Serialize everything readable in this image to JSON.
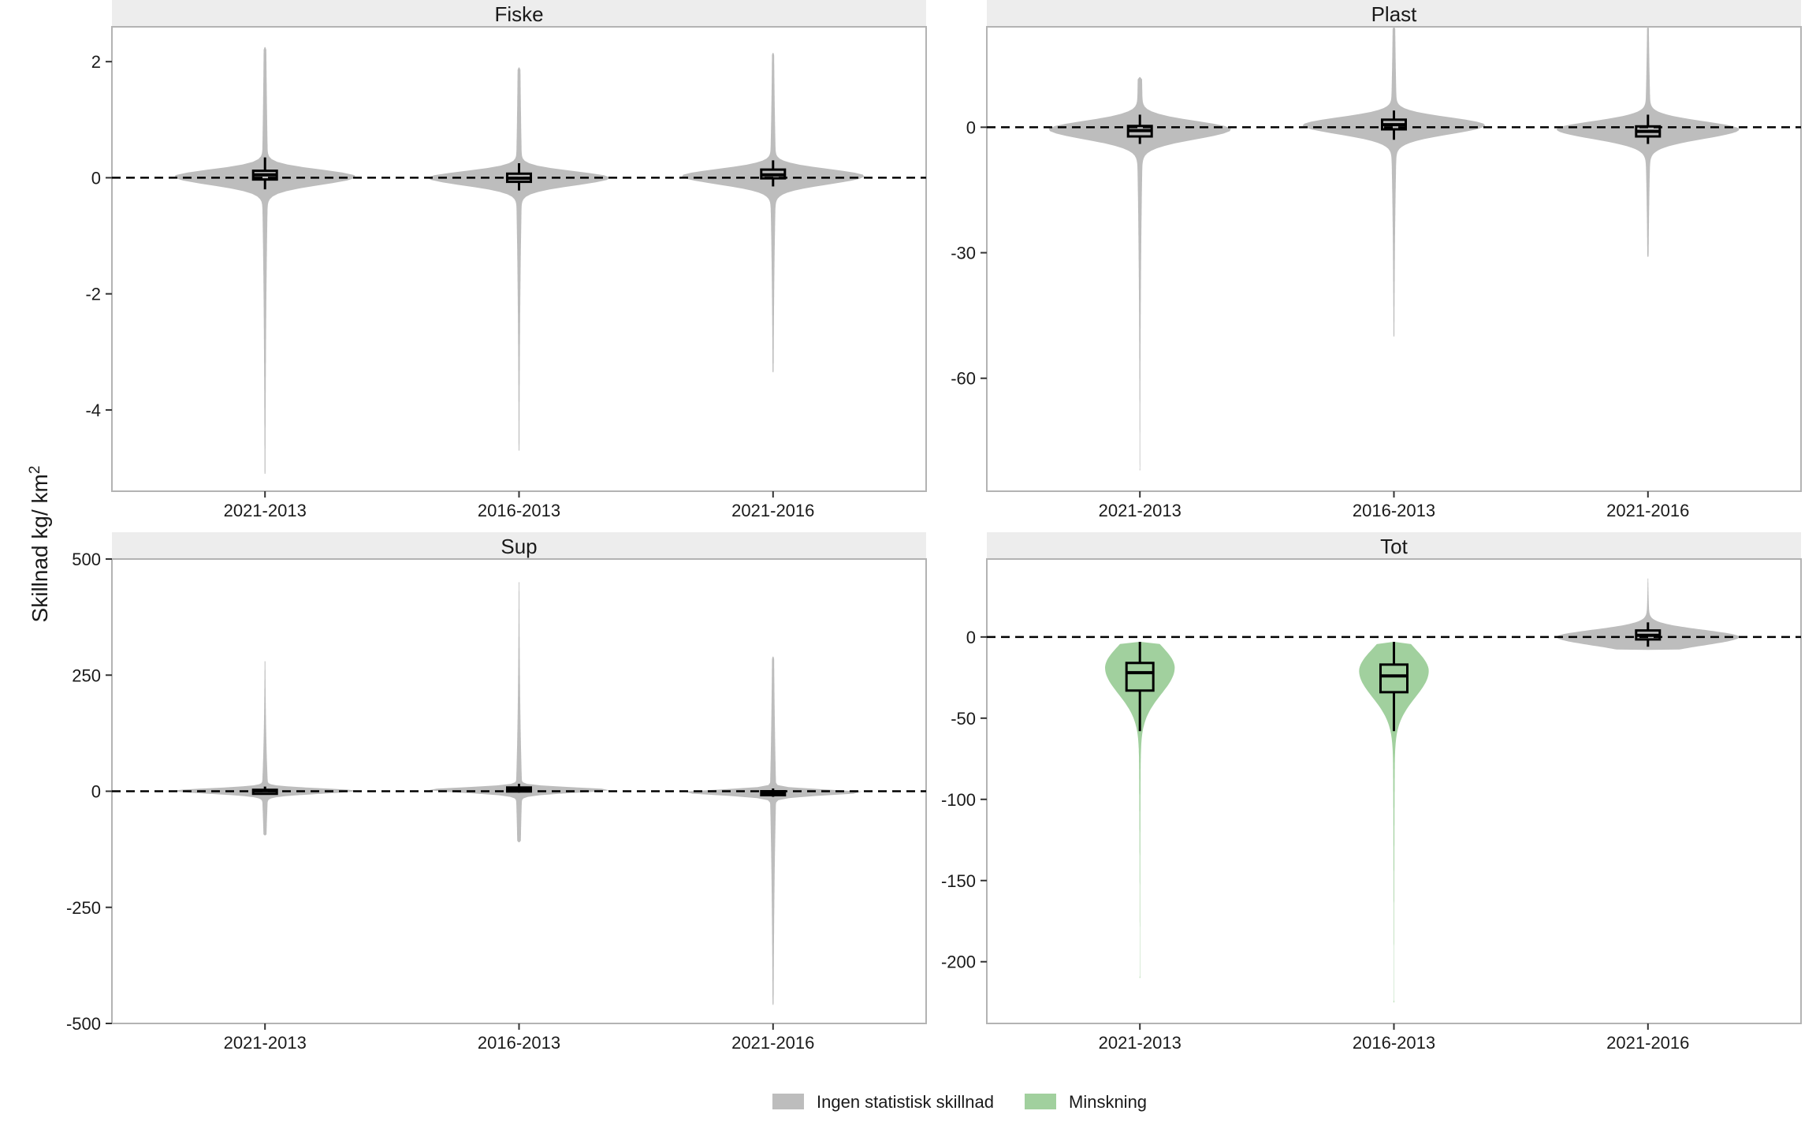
{
  "figure": {
    "ylabel": "Skillnad kg/ km",
    "ylabel_superscript": "2",
    "legend": [
      {
        "label": "Ingen statistisk skillnad",
        "color": "#bdbdbd"
      },
      {
        "label": "Minskning",
        "color": "#a1d09e"
      }
    ],
    "legend_position": "bottom",
    "colors": {
      "no_difference": "#bdbdbd",
      "decrease": "#a1d09e",
      "box": "#000000",
      "reference_line": "#000000",
      "strip": "#ededed",
      "panel_border": "#b3b3b3"
    }
  },
  "chart_data": [
    {
      "type": "violin",
      "title": "Fiske",
      "categories": [
        "2021-2013",
        "2016-2013",
        "2021-2016"
      ],
      "ylim": [
        -5.4,
        2.6
      ],
      "yticks": [
        2,
        0,
        -2,
        -4
      ],
      "ytick_labels": [
        "2",
        "0",
        "-2",
        "-4"
      ],
      "reference_line": 0,
      "grid": false,
      "series": [
        {
          "category": "2021-2013",
          "group": "Ingen statistisk skillnad",
          "min": -5.1,
          "max": 2.25,
          "q1": -0.03,
          "median": 0.05,
          "q3": 0.12,
          "whisker_low": -0.2,
          "whisker_high": 0.35,
          "peak": 0.02
        },
        {
          "category": "2016-2013",
          "group": "Ingen statistisk skillnad",
          "min": -4.7,
          "max": 1.9,
          "q1": -0.07,
          "median": -0.01,
          "q3": 0.07,
          "whisker_low": -0.22,
          "whisker_high": 0.25,
          "peak": 0.0
        },
        {
          "category": "2021-2016",
          "group": "Ingen statistisk skillnad",
          "min": -3.35,
          "max": 2.15,
          "q1": -0.01,
          "median": 0.05,
          "q3": 0.14,
          "whisker_low": -0.15,
          "whisker_high": 0.3,
          "peak": 0.03
        }
      ]
    },
    {
      "type": "violin",
      "title": "Plast",
      "categories": [
        "2021-2013",
        "2016-2013",
        "2021-2016"
      ],
      "ylim": [
        -87,
        24
      ],
      "yticks": [
        0,
        -30,
        -60
      ],
      "ytick_labels": [
        "0",
        "-30",
        "-60"
      ],
      "reference_line": 0,
      "grid": false,
      "series": [
        {
          "category": "2021-2013",
          "group": "Ingen statistisk skillnad",
          "min": -82,
          "max": 12,
          "q1": -2.2,
          "median": -0.8,
          "q3": 0.3,
          "whisker_low": -4,
          "whisker_high": 3,
          "peak": -0.5
        },
        {
          "category": "2016-2013",
          "group": "Ingen statistisk skillnad",
          "min": -50,
          "max": 24,
          "q1": -0.5,
          "median": 0.6,
          "q3": 1.8,
          "whisker_low": -3,
          "whisker_high": 4,
          "peak": 0.5
        },
        {
          "category": "2021-2016",
          "group": "Ingen statistisk skillnad",
          "min": -31,
          "max": 24,
          "q1": -2.2,
          "median": -1.0,
          "q3": 0.2,
          "whisker_low": -4,
          "whisker_high": 3,
          "peak": -0.5
        }
      ]
    },
    {
      "type": "violin",
      "title": "Sup",
      "categories": [
        "2021-2013",
        "2016-2013",
        "2021-2016"
      ],
      "ylim": [
        -500,
        500
      ],
      "yticks": [
        500,
        250,
        0,
        -250,
        -500
      ],
      "ytick_labels": [
        "500",
        "250",
        "0",
        "-250",
        "-500"
      ],
      "reference_line": 0,
      "grid": false,
      "series": [
        {
          "category": "2021-2013",
          "group": "Ingen statistisk skillnad",
          "min": -95,
          "max": 280,
          "q1": -1,
          "median": 1,
          "q3": 3,
          "whisker_low": -6,
          "whisker_high": 10,
          "peak": 1
        },
        {
          "category": "2016-2013",
          "group": "Ingen statistisk skillnad",
          "min": -110,
          "max": 450,
          "q1": 2,
          "median": 5,
          "q3": 8,
          "whisker_low": -3,
          "whisker_high": 16,
          "peak": 3
        },
        {
          "category": "2021-2016",
          "group": "Ingen statistisk skillnad",
          "min": -460,
          "max": 290,
          "q1": -6,
          "median": -3,
          "q3": 0,
          "whisker_low": -12,
          "whisker_high": 6,
          "peak": -2
        }
      ]
    },
    {
      "type": "violin",
      "title": "Tot",
      "categories": [
        "2021-2013",
        "2016-2013",
        "2021-2016"
      ],
      "ylim": [
        -238,
        48
      ],
      "yticks": [
        0,
        -50,
        -100,
        -150,
        -200
      ],
      "ytick_labels": [
        "0",
        "-50",
        "-100",
        "-150",
        "-200"
      ],
      "reference_line": 0,
      "grid": false,
      "series": [
        {
          "category": "2021-2013",
          "group": "Minskning",
          "min": -210,
          "max": -3,
          "q1": -33,
          "median": -22,
          "q3": -16,
          "whisker_low": -58,
          "whisker_high": -3,
          "peak": -19
        },
        {
          "category": "2016-2013",
          "group": "Minskning",
          "min": -225,
          "max": -3,
          "q1": -34,
          "median": -24,
          "q3": -17,
          "whisker_low": -58,
          "whisker_high": -3,
          "peak": -21
        },
        {
          "category": "2021-2016",
          "group": "Ingen statistisk skillnad",
          "min": -8,
          "max": 36,
          "q1": -1.5,
          "median": 1,
          "q3": 4,
          "whisker_low": -6,
          "whisker_high": 9,
          "peak": 0
        }
      ]
    }
  ]
}
